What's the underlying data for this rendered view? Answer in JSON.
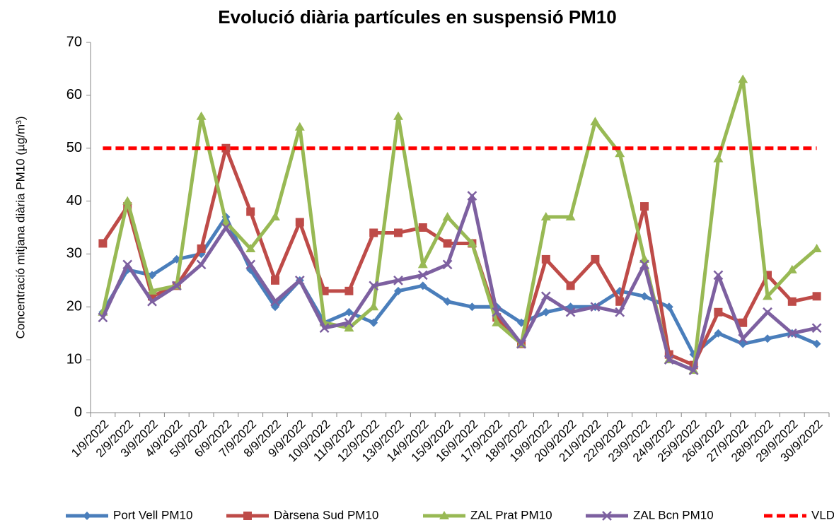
{
  "chart_data": {
    "type": "line",
    "title": "Evolució diària partícules en suspensió PM10",
    "y_label": "Concentració mitjana diària PM10 (µg/m³)",
    "categories": [
      "1/9/2022",
      "2/9/2022",
      "3/9/2022",
      "4/9/2022",
      "5/9/2022",
      "6/9/2022",
      "7/9/2022",
      "8/9/2022",
      "9/9/2022",
      "10/9/2022",
      "11/9/2022",
      "12/9/2022",
      "13/9/2022",
      "14/9/2022",
      "15/9/2022",
      "16/9/2022",
      "17/9/2022",
      "18/9/2022",
      "19/9/2022",
      "20/9/2022",
      "21/9/2022",
      "22/9/2022",
      "23/9/2022",
      "24/9/2022",
      "25/9/2022",
      "26/9/2022",
      "27/9/2022",
      "28/9/2022",
      "29/9/2022",
      "30/9/2022"
    ],
    "series": [
      {
        "name": "Port Vell PM10",
        "color": "#4a7ebb",
        "marker": "diamond",
        "values": [
          19,
          27,
          26,
          29,
          30,
          37,
          27,
          20,
          25,
          17,
          19,
          17,
          23,
          24,
          21,
          20,
          20,
          17,
          19,
          20,
          20,
          23,
          22,
          20,
          11,
          15,
          13,
          14,
          15,
          13
        ]
      },
      {
        "name": "Dàrsena Sud PM10",
        "color": "#be4b48",
        "marker": "square",
        "values": [
          32,
          39,
          22,
          24,
          31,
          50,
          38,
          25,
          36,
          23,
          23,
          34,
          34,
          35,
          32,
          32,
          18,
          13,
          29,
          24,
          29,
          21,
          39,
          11,
          9,
          19,
          17,
          26,
          21,
          22
        ]
      },
      {
        "name": "ZAL Prat PM10",
        "color": "#98b954",
        "marker": "triangle",
        "values": [
          19,
          40,
          23,
          24,
          56,
          36,
          31,
          37,
          54,
          17,
          16,
          20,
          56,
          28,
          37,
          32,
          17,
          13,
          37,
          37,
          55,
          49,
          29,
          10,
          8,
          48,
          63,
          22,
          27,
          31
        ]
      },
      {
        "name": "ZAL Bcn PM10",
        "color": "#7d60a0",
        "marker": "x",
        "values": [
          18,
          28,
          21,
          24,
          28,
          35,
          28,
          21,
          25,
          16,
          17,
          24,
          25,
          26,
          28,
          41,
          19,
          13,
          22,
          19,
          20,
          19,
          28,
          10,
          8,
          26,
          14,
          19,
          15,
          16
        ]
      },
      {
        "name": "VLD",
        "color": "#ff0000",
        "marker": "none",
        "dashed": true,
        "values": [
          50,
          50,
          50,
          50,
          50,
          50,
          50,
          50,
          50,
          50,
          50,
          50,
          50,
          50,
          50,
          50,
          50,
          50,
          50,
          50,
          50,
          50,
          50,
          50,
          50,
          50,
          50,
          50,
          50,
          50
        ]
      }
    ],
    "ylim": [
      0,
      70
    ],
    "yticks": [
      0,
      10,
      20,
      30,
      40,
      50,
      60,
      70
    ],
    "grid": false,
    "legend": "bottom"
  }
}
